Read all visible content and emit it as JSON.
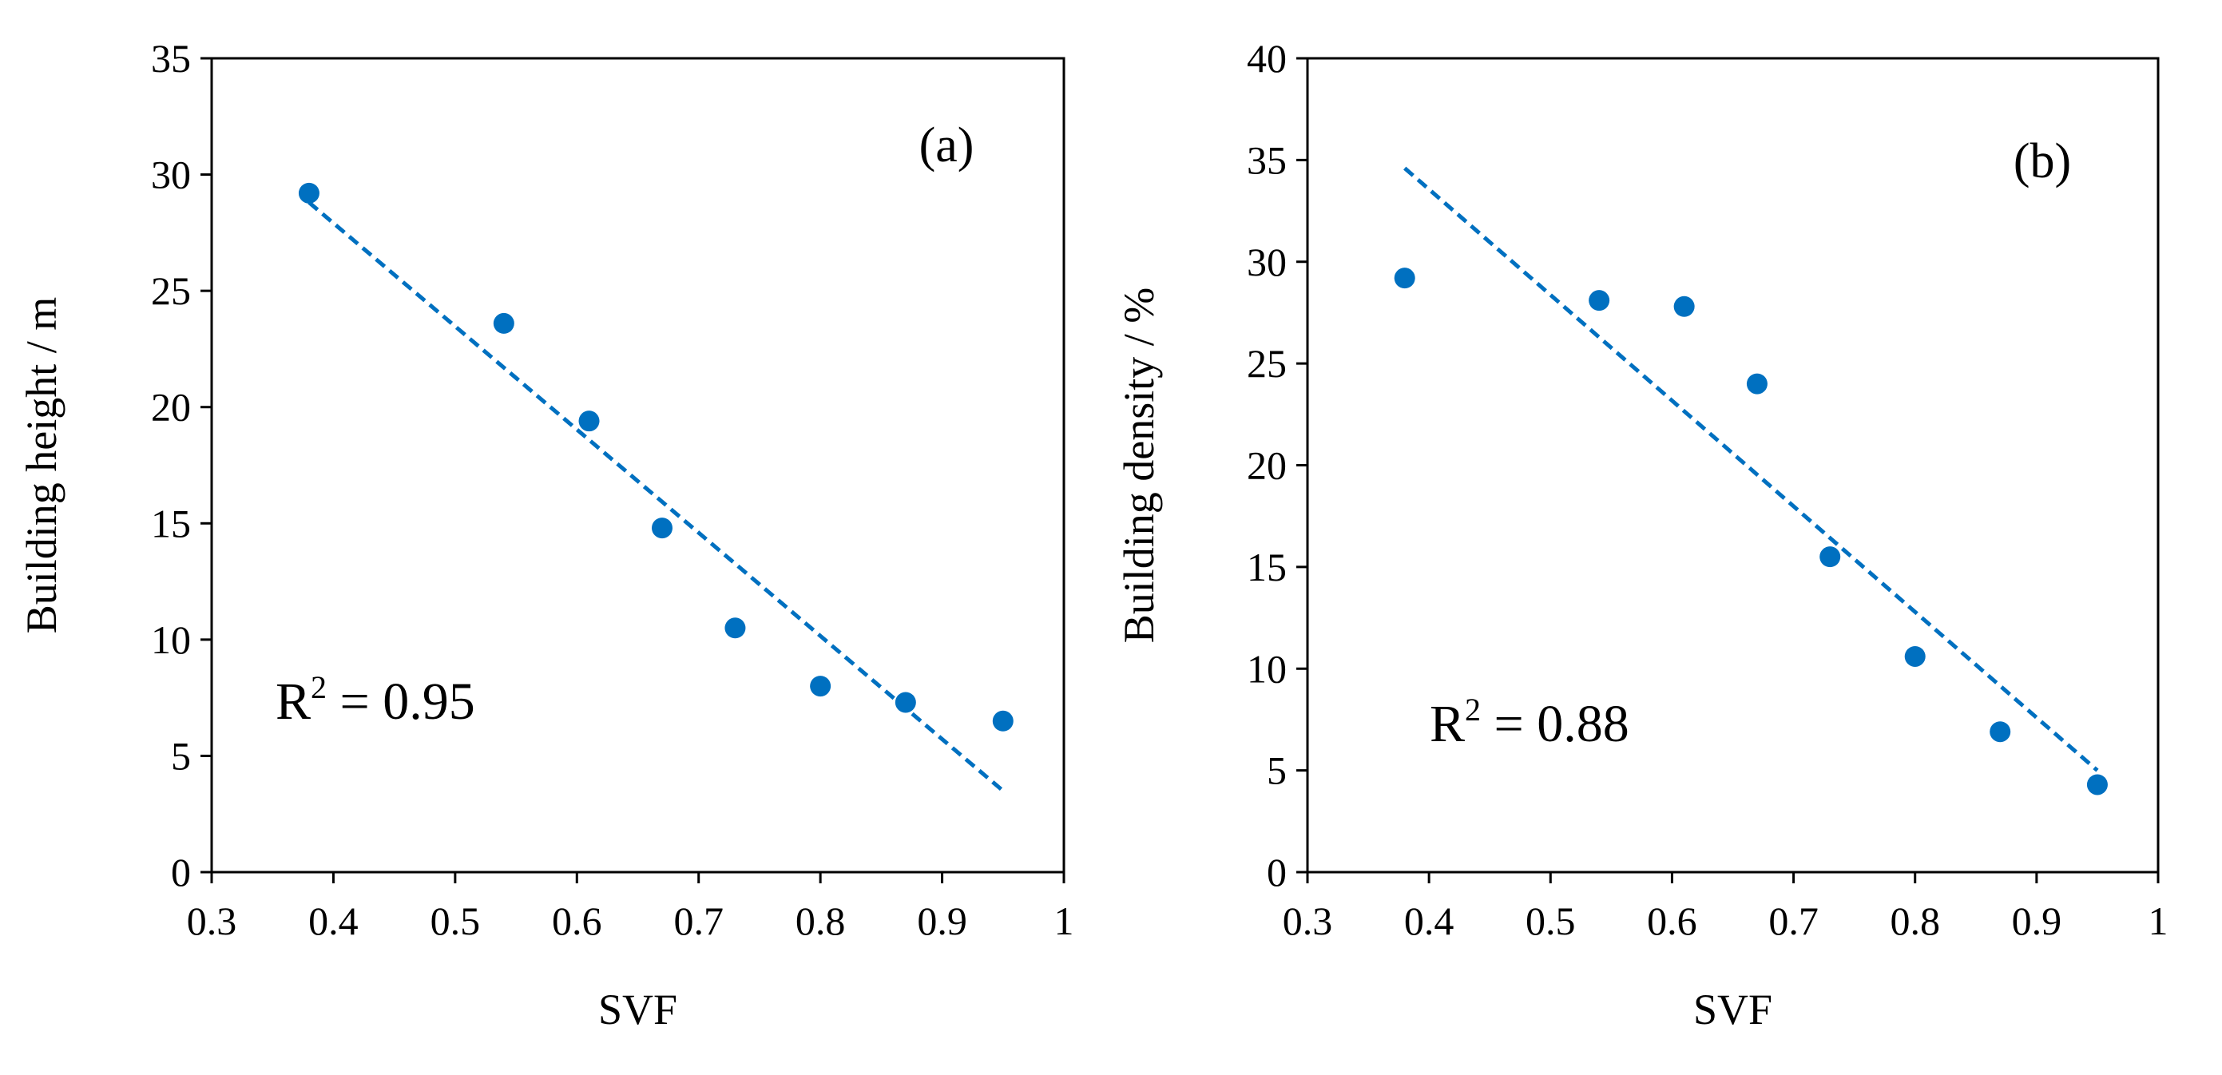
{
  "chart_data": [
    {
      "type": "scatter",
      "panel_label": "(a)",
      "title": "",
      "xlabel": "SVF",
      "ylabel": "Building height / m",
      "xlim": [
        0.3,
        1
      ],
      "ylim": [
        0,
        35
      ],
      "xticks": [
        0.3,
        0.4,
        0.5,
        0.6,
        0.7,
        0.8,
        0.9,
        1
      ],
      "xtick_labels": [
        "0.3",
        "0.4",
        "0.5",
        "0.6",
        "0.7",
        "0.8",
        "0.9",
        "1"
      ],
      "yticks": [
        0,
        5,
        10,
        15,
        20,
        25,
        30,
        35
      ],
      "ytick_labels": [
        "0",
        "5",
        "10",
        "15",
        "20",
        "25",
        "30",
        "35"
      ],
      "grid": false,
      "color": "#0070C0",
      "x": [
        0.38,
        0.54,
        0.61,
        0.67,
        0.73,
        0.8,
        0.87,
        0.95
      ],
      "y": [
        29.2,
        23.6,
        19.4,
        14.8,
        10.5,
        8.0,
        7.3,
        6.5
      ],
      "trendline": {
        "x": [
          0.38,
          0.95
        ],
        "y": [
          28.8,
          3.5
        ]
      },
      "r2_base": "R",
      "r2_exp": "2",
      "r2_value": " = 0.95"
    },
    {
      "type": "scatter",
      "panel_label": "(b)",
      "title": "",
      "xlabel": "SVF",
      "ylabel": "Building density / %",
      "xlim": [
        0.3,
        1
      ],
      "ylim": [
        0,
        40
      ],
      "xticks": [
        0.3,
        0.4,
        0.5,
        0.6,
        0.7,
        0.8,
        0.9,
        1
      ],
      "xtick_labels": [
        "0.3",
        "0.4",
        "0.5",
        "0.6",
        "0.7",
        "0.8",
        "0.9",
        "1"
      ],
      "yticks": [
        0,
        5,
        10,
        15,
        20,
        25,
        30,
        35,
        40
      ],
      "ytick_labels": [
        "0",
        "5",
        "10",
        "15",
        "20",
        "25",
        "30",
        "35",
        "40"
      ],
      "grid": false,
      "color": "#0070C0",
      "x": [
        0.38,
        0.54,
        0.61,
        0.67,
        0.73,
        0.8,
        0.87,
        0.95
      ],
      "y": [
        29.2,
        28.1,
        27.8,
        24.0,
        15.5,
        10.6,
        6.9,
        4.3
      ],
      "trendline": {
        "x": [
          0.38,
          0.95
        ],
        "y": [
          34.6,
          5.0
        ]
      },
      "r2_base": "R",
      "r2_exp": "2",
      "r2_value": " = 0.88"
    }
  ]
}
